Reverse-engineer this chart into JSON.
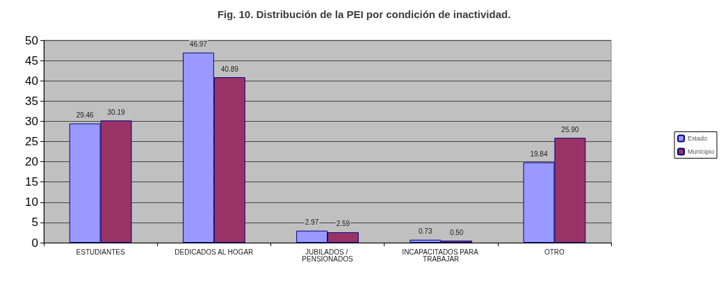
{
  "chart_data": {
    "type": "bar",
    "title": "Fig. 10. Distribución de la PEI por condición de inactividad.",
    "categories": [
      "ESTUDIANTES",
      "DEDICADOS AL HOGAR",
      "JUBILADOS / PENSIONADOS",
      "INCAPACITADOS PARA TRABAJAR",
      "OTRO"
    ],
    "series": [
      {
        "name": "Estado",
        "color": "#9999ff",
        "values": [
          29.46,
          46.97,
          2.97,
          0.73,
          19.84
        ],
        "value_labels": [
          "29.46",
          "46.97",
          "2.97",
          "0.73",
          "19.84"
        ]
      },
      {
        "name": "Municipio",
        "color": "#993366",
        "values": [
          30.19,
          40.89,
          2.59,
          0.5,
          25.9
        ],
        "value_labels": [
          "30.19",
          "40.89",
          "2.59",
          "0.50",
          "25.90"
        ]
      }
    ],
    "ylim": [
      0,
      50
    ],
    "yticks": [
      0,
      5,
      10,
      15,
      20,
      25,
      30,
      35,
      40,
      45,
      50
    ],
    "grid": "y",
    "legend": "right"
  }
}
